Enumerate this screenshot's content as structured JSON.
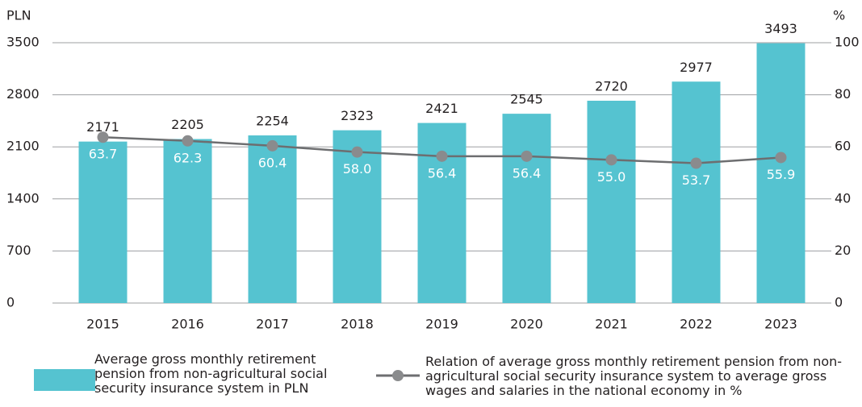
{
  "chart_data": {
    "type": "bar_line",
    "y_unit": "PLN",
    "y2_unit": "%",
    "categories": [
      "2015",
      "2016",
      "2017",
      "2018",
      "2019",
      "2020",
      "2021",
      "2022",
      "2023"
    ],
    "series": [
      {
        "name": "Average gross monthly retirement pension from non-agricultural social security insurance system in PLN",
        "type": "bar",
        "color": "#55c3d0",
        "values": [
          2171,
          2205,
          2254,
          2323,
          2421,
          2545,
          2720,
          2977,
          3493
        ]
      },
      {
        "name": "Relation of average gross monthly retirement pension from non-agricultural social security insurance system to average gross wages and salaries in the national economy in %",
        "type": "line",
        "axis": "y2",
        "color": "#6d6e70",
        "values": [
          63.7,
          62.3,
          60.4,
          58.0,
          56.4,
          56.4,
          55.0,
          53.7,
          55.9
        ],
        "value_labels": [
          "63.7",
          "62.3",
          "60.4",
          "58.0",
          "56.4",
          "56.4",
          "55.0",
          "53.7",
          "55.9"
        ]
      }
    ],
    "ylim": [
      0,
      3500
    ],
    "yticks": [
      0,
      700,
      1400,
      2100,
      2800,
      3500
    ],
    "y2lim": [
      0,
      100
    ],
    "y2ticks": [
      0,
      20,
      40,
      60,
      80,
      100
    ],
    "grid": true
  }
}
